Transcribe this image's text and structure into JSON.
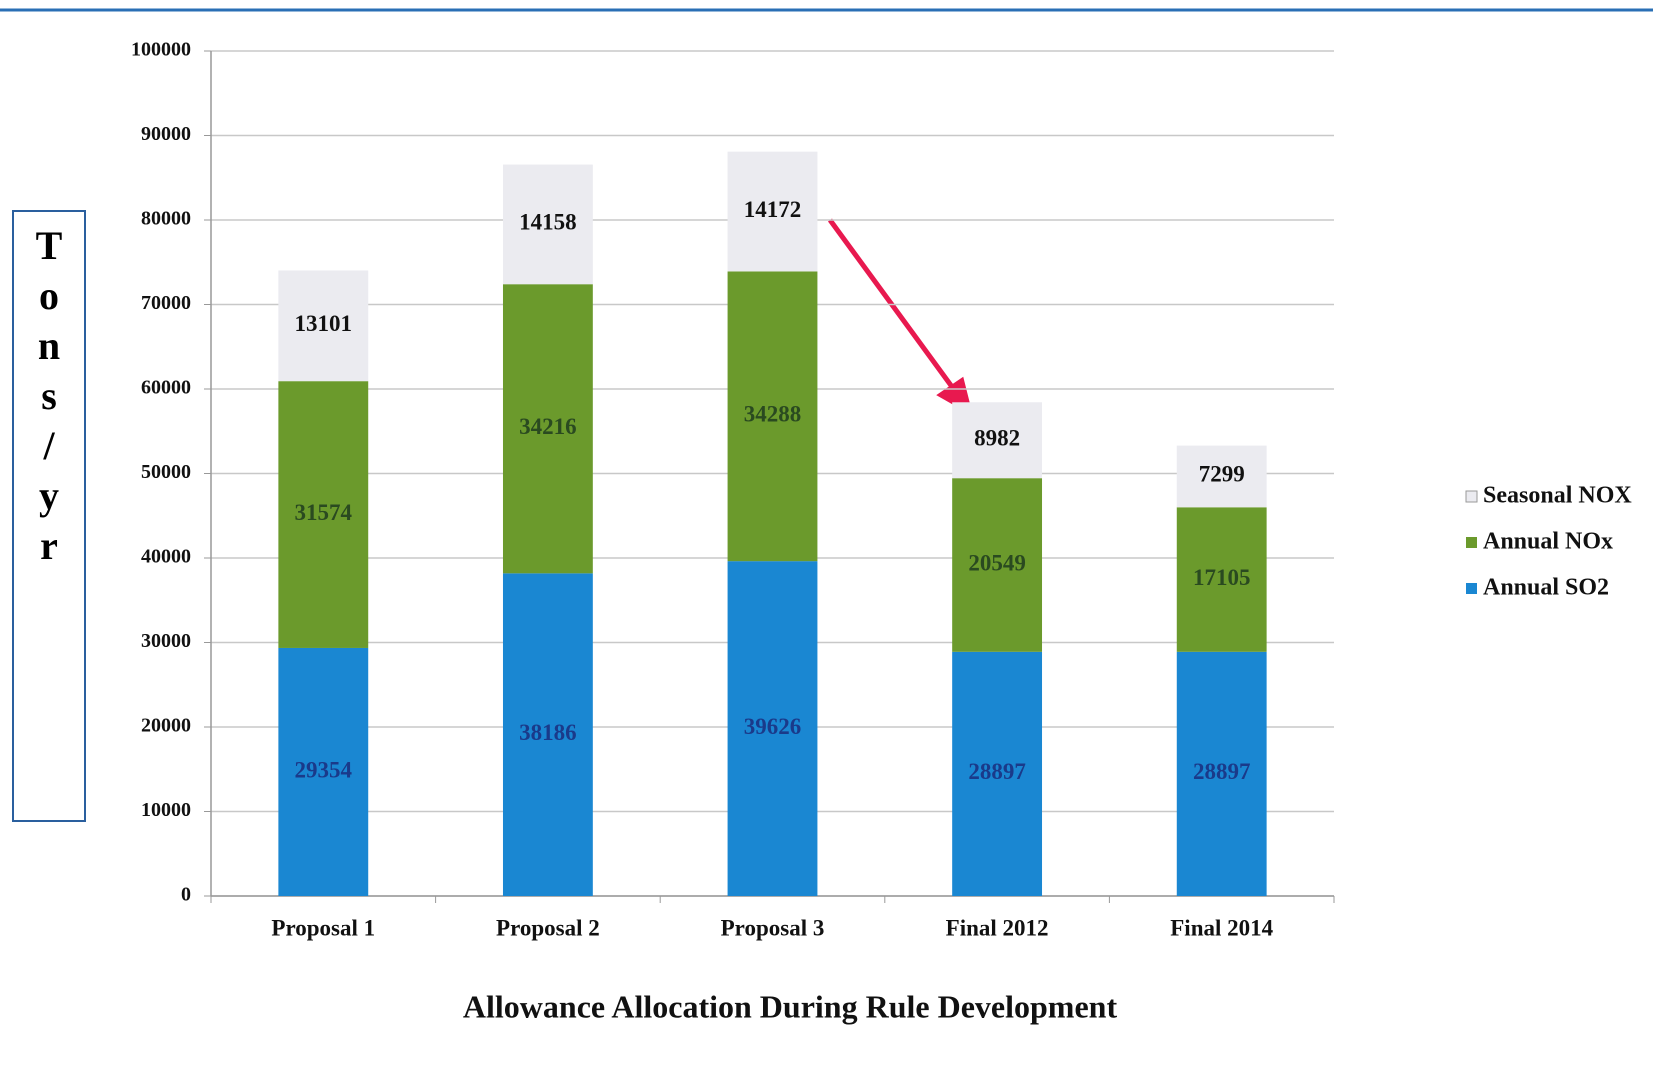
{
  "chart_data": {
    "type": "stacked_bar",
    "title": "Allowance Allocation  During Rule Development",
    "ylabel": "Tons/yr",
    "categories": [
      "Proposal 1",
      "Proposal 2",
      "Proposal 3",
      "Final 2012",
      "Final 2014"
    ],
    "series": [
      {
        "name": "Annual SO2",
        "color": "#1a87d2",
        "values": [
          29354,
          38186,
          39626,
          28897,
          28897
        ]
      },
      {
        "name": "Annual NOx",
        "color": "#6b9a2c",
        "values": [
          31574,
          34216,
          34288,
          20549,
          17105
        ]
      },
      {
        "name": "Seasonal NOX",
        "color": "#ebebf0",
        "values": [
          13101,
          14158,
          14172,
          8982,
          7299
        ]
      }
    ],
    "ylim": [
      0,
      100000
    ],
    "yticks": [
      0,
      10000,
      20000,
      30000,
      40000,
      50000,
      60000,
      70000,
      80000,
      90000,
      100000
    ],
    "grid": true
  }
}
